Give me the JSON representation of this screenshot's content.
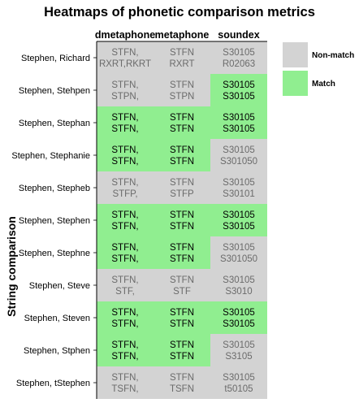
{
  "chart_data": {
    "type": "heatmap",
    "title": "Heatmaps of phonetic comparison metrics",
    "ylabel": "String comparison",
    "columns": [
      "dmetaphone",
      "metaphone",
      "soundex"
    ],
    "rows": [
      {
        "label": "Stephen, Richard",
        "cells": [
          {
            "top": "STFN,",
            "bottom": "RXRT,RKRT",
            "match": false
          },
          {
            "top": "STFN",
            "bottom": "RXRT",
            "match": false
          },
          {
            "top": "S30105",
            "bottom": "R02063",
            "match": false
          }
        ]
      },
      {
        "label": "Stephen, Stehpen",
        "cells": [
          {
            "top": "STFN,",
            "bottom": "STPN,",
            "match": false
          },
          {
            "top": "STFN",
            "bottom": "STPN",
            "match": false
          },
          {
            "top": "S30105",
            "bottom": "S30105",
            "match": true
          }
        ]
      },
      {
        "label": "Stephen, Stephan",
        "cells": [
          {
            "top": "STFN,",
            "bottom": "STFN,",
            "match": true
          },
          {
            "top": "STFN",
            "bottom": "STFN",
            "match": true
          },
          {
            "top": "S30105",
            "bottom": "S30105",
            "match": true
          }
        ]
      },
      {
        "label": "Stephen, Stephanie",
        "cells": [
          {
            "top": "STFN,",
            "bottom": "STFN,",
            "match": true
          },
          {
            "top": "STFN",
            "bottom": "STFN",
            "match": true
          },
          {
            "top": "S30105",
            "bottom": "S301050",
            "match": false
          }
        ]
      },
      {
        "label": "Stephen, Stepheb",
        "cells": [
          {
            "top": "STFN,",
            "bottom": "STFP,",
            "match": false
          },
          {
            "top": "STFN",
            "bottom": "STFP",
            "match": false
          },
          {
            "top": "S30105",
            "bottom": "S30101",
            "match": false
          }
        ]
      },
      {
        "label": "Stephen, Stephen",
        "cells": [
          {
            "top": "STFN,",
            "bottom": "STFN,",
            "match": true
          },
          {
            "top": "STFN",
            "bottom": "STFN",
            "match": true
          },
          {
            "top": "S30105",
            "bottom": "S30105",
            "match": true
          }
        ]
      },
      {
        "label": "Stephen, Stephne",
        "cells": [
          {
            "top": "STFN,",
            "bottom": "STFN,",
            "match": true
          },
          {
            "top": "STFN",
            "bottom": "STFN",
            "match": true
          },
          {
            "top": "S30105",
            "bottom": "S301050",
            "match": false
          }
        ]
      },
      {
        "label": "Stephen, Steve",
        "cells": [
          {
            "top": "STFN,",
            "bottom": "STF,",
            "match": false
          },
          {
            "top": "STFN",
            "bottom": "STF",
            "match": false
          },
          {
            "top": "S30105",
            "bottom": "S3010",
            "match": false
          }
        ]
      },
      {
        "label": "Stephen, Steven",
        "cells": [
          {
            "top": "STFN,",
            "bottom": "STFN,",
            "match": true
          },
          {
            "top": "STFN",
            "bottom": "STFN",
            "match": true
          },
          {
            "top": "S30105",
            "bottom": "S30105",
            "match": true
          }
        ]
      },
      {
        "label": "Stephen, Stphen",
        "cells": [
          {
            "top": "STFN,",
            "bottom": "STFN,",
            "match": true
          },
          {
            "top": "STFN",
            "bottom": "STFN",
            "match": true
          },
          {
            "top": "S30105",
            "bottom": "S3105",
            "match": false
          }
        ]
      },
      {
        "label": "Stephen, tStephen",
        "cells": [
          {
            "top": "STFN,",
            "bottom": "TSFN,",
            "match": false
          },
          {
            "top": "STFN",
            "bottom": "TSFN",
            "match": false
          },
          {
            "top": "S30105",
            "bottom": "t50105",
            "match": false
          }
        ]
      }
    ],
    "legend": [
      {
        "label": "Non-match",
        "color": "#d3d3d3",
        "text_color": "#6b6b6b"
      },
      {
        "label": "Match",
        "color": "#90ee90",
        "text_color": "#000000"
      }
    ],
    "legend_placement": "top-right"
  }
}
